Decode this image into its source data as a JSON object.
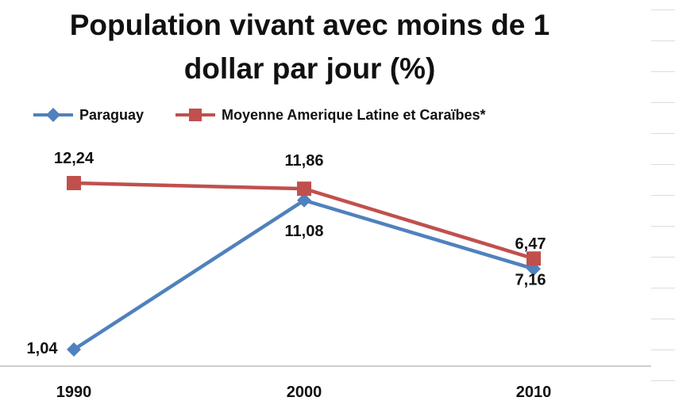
{
  "chart_data": {
    "type": "line",
    "title_lines": [
      "Population vivant avec moins de 1",
      "dollar par jour (%)"
    ],
    "categories": [
      "1990",
      "2000",
      "2010"
    ],
    "series": [
      {
        "name": "Paraguay",
        "values": [
          1.04,
          11.08,
          6.47
        ],
        "labels": [
          "1,04",
          "11,08",
          "6,47"
        ],
        "color": "#4f81bd",
        "marker": "diamond"
      },
      {
        "name": "Moyenne Amerique Latine et Caraïbes*",
        "values": [
          12.24,
          11.86,
          7.16
        ],
        "labels": [
          "12,24",
          "11,86",
          "7,16"
        ],
        "color": "#c0504d",
        "marker": "square"
      }
    ],
    "ylim": [
      0,
      12.24
    ],
    "legend_position": "top",
    "grid": false
  }
}
